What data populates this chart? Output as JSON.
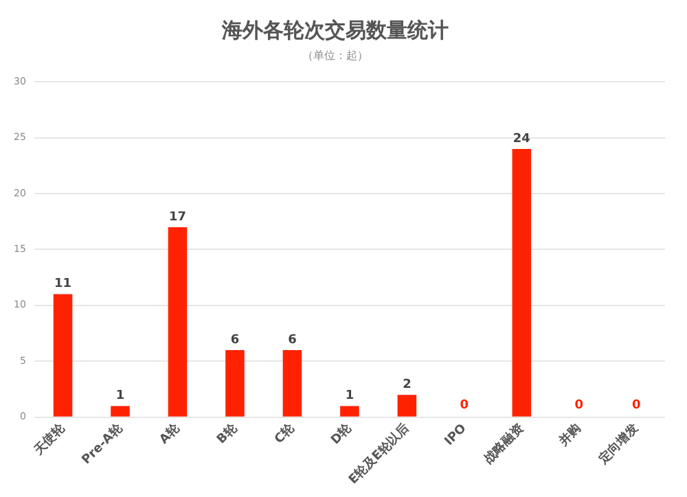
{
  "chart_data": {
    "type": "bar",
    "title": "海外各轮次交易数量统计",
    "subtitle": "（单位：起）",
    "categories": [
      "天使轮",
      "Pre-A轮",
      "A轮",
      "B轮",
      "C轮",
      "D轮",
      "E轮及E轮以后",
      "IPO",
      "战略融资",
      "并购",
      "定向增发"
    ],
    "values": [
      11,
      1,
      17,
      6,
      6,
      1,
      2,
      0,
      24,
      0,
      0
    ],
    "color": "#ff2200",
    "ylim": [
      0,
      30
    ],
    "yticks": [
      0,
      5,
      10,
      15,
      20,
      25,
      30
    ],
    "grid": "y",
    "data_labels": true
  }
}
